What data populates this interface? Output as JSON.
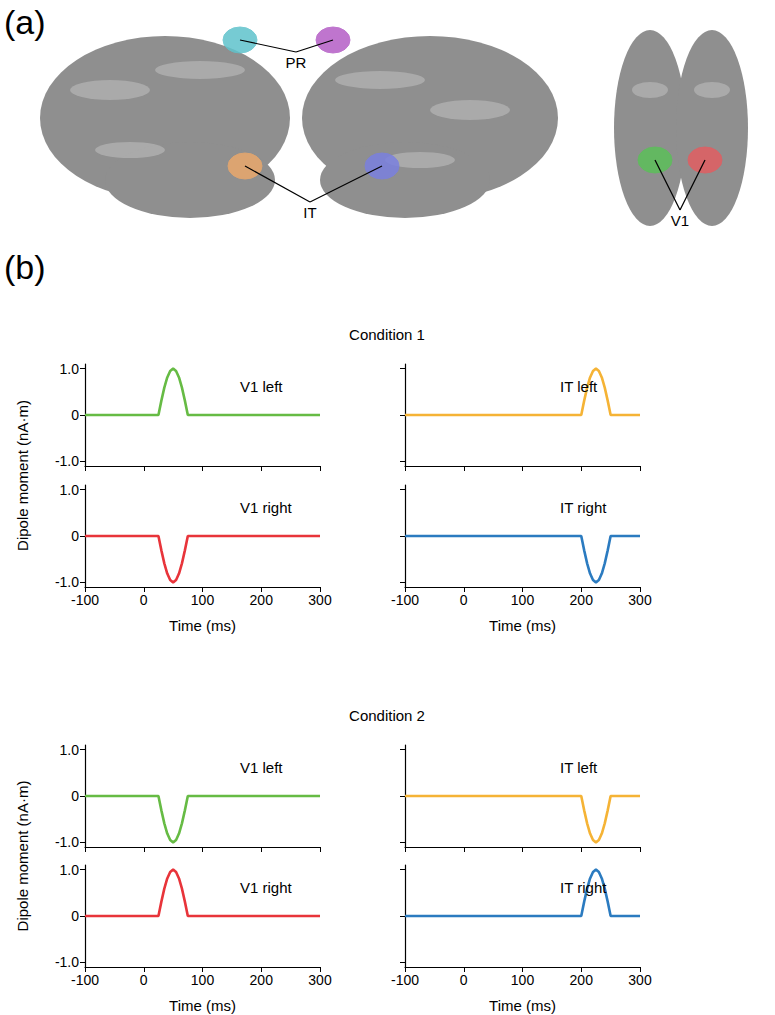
{
  "figure": {
    "panel_a": {
      "label": "(a)",
      "regions": [
        {
          "label": "PR",
          "colors": [
            "#5fc3cc",
            "#b45ec6"
          ]
        },
        {
          "label": "IT",
          "colors": [
            "#eaa86c",
            "#7a80e0"
          ]
        },
        {
          "label": "V1",
          "colors": [
            "#5cc05a",
            "#e25e62"
          ]
        }
      ]
    },
    "panel_b": {
      "label": "(b)",
      "conditions": [
        "Condition 1",
        "Condition 2"
      ],
      "ylabel": "Dipole moment (nA·m)",
      "xlabel": "Time (ms)"
    }
  },
  "chart_data": [
    {
      "type": "line",
      "condition": "Condition 1",
      "title": "V1 left",
      "color": "#66bb44",
      "x": [
        -100,
        25,
        30,
        35,
        40,
        45,
        50,
        55,
        60,
        65,
        70,
        75,
        300
      ],
      "values": [
        0,
        0,
        0.31,
        0.59,
        0.81,
        0.95,
        1.0,
        0.95,
        0.81,
        0.59,
        0.31,
        0,
        0
      ],
      "xlim": [
        -100,
        300
      ],
      "xticks": [
        -100,
        0,
        100,
        200,
        300
      ],
      "ylim": [
        -1.1,
        1.1
      ],
      "yticks": [
        {
          "value": -1,
          "label": "-1.0"
        },
        0,
        {
          "value": 1,
          "label": "1.0"
        }
      ],
      "tick_labels": "y"
    },
    {
      "type": "line",
      "condition": "Condition 1",
      "title": "IT left",
      "color": "#f5b335",
      "x": [
        -100,
        200,
        205,
        210,
        215,
        220,
        225,
        230,
        235,
        240,
        245,
        250,
        300
      ],
      "values": [
        0,
        0,
        0.31,
        0.59,
        0.81,
        0.95,
        1.0,
        0.95,
        0.81,
        0.59,
        0.31,
        0,
        0
      ],
      "xlim": [
        -100,
        300
      ],
      "xticks": [
        -100,
        0,
        100,
        200,
        300
      ],
      "ylim": [
        -1.1,
        1.1
      ],
      "yticks": [
        {
          "value": -1,
          "label": "-1.0"
        },
        0,
        {
          "value": 1,
          "label": "1.0"
        }
      ],
      "tick_labels": false
    },
    {
      "type": "line",
      "condition": "Condition 1",
      "title": "V1 right",
      "color": "#e8343a",
      "x": [
        -100,
        25,
        30,
        35,
        40,
        45,
        50,
        55,
        60,
        65,
        70,
        75,
        300
      ],
      "values": [
        0,
        0,
        -0.31,
        -0.59,
        -0.81,
        -0.95,
        -1.0,
        -0.95,
        -0.81,
        -0.59,
        -0.31,
        0,
        0
      ],
      "xlim": [
        -100,
        300
      ],
      "xticks": [
        -100,
        0,
        100,
        200,
        300
      ],
      "ylim": [
        -1.1,
        1.1
      ],
      "yticks": [
        {
          "value": -1,
          "label": "-1.0"
        },
        0,
        {
          "value": 1,
          "label": "1.0"
        }
      ],
      "tick_labels": true
    },
    {
      "type": "line",
      "condition": "Condition 1",
      "title": "IT right",
      "color": "#2b7bc0",
      "x": [
        -100,
        200,
        205,
        210,
        215,
        220,
        225,
        230,
        235,
        240,
        245,
        250,
        300
      ],
      "values": [
        0,
        0,
        -0.31,
        -0.59,
        -0.81,
        -0.95,
        -1.0,
        -0.95,
        -0.81,
        -0.59,
        -0.31,
        0,
        0
      ],
      "xlim": [
        -100,
        300
      ],
      "xticks": [
        -100,
        0,
        100,
        200,
        300
      ],
      "ylim": [
        -1.1,
        1.1
      ],
      "yticks": [
        {
          "value": -1,
          "label": "-1.0"
        },
        0,
        {
          "value": 1,
          "label": "1.0"
        }
      ],
      "tick_labels": "x"
    },
    {
      "type": "line",
      "condition": "Condition 2",
      "title": "V1 left",
      "color": "#66bb44",
      "x": [
        -100,
        25,
        30,
        35,
        40,
        45,
        50,
        55,
        60,
        65,
        70,
        75,
        300
      ],
      "values": [
        0,
        0,
        -0.31,
        -0.59,
        -0.81,
        -0.95,
        -1.0,
        -0.95,
        -0.81,
        -0.59,
        -0.31,
        0,
        0
      ],
      "xlim": [
        -100,
        300
      ],
      "xticks": [
        -100,
        0,
        100,
        200,
        300
      ],
      "ylim": [
        -1.1,
        1.1
      ],
      "yticks": [
        {
          "value": -1,
          "label": "-1.0"
        },
        0,
        {
          "value": 1,
          "label": "1.0"
        }
      ],
      "tick_labels": "y"
    },
    {
      "type": "line",
      "condition": "Condition 2",
      "title": "IT left",
      "color": "#f5b335",
      "x": [
        -100,
        200,
        205,
        210,
        215,
        220,
        225,
        230,
        235,
        240,
        245,
        250,
        300
      ],
      "values": [
        0,
        0,
        -0.31,
        -0.59,
        -0.81,
        -0.95,
        -1.0,
        -0.95,
        -0.81,
        -0.59,
        -0.31,
        0,
        0
      ],
      "xlim": [
        -100,
        300
      ],
      "xticks": [
        -100,
        0,
        100,
        200,
        300
      ],
      "ylim": [
        -1.1,
        1.1
      ],
      "yticks": [
        {
          "value": -1,
          "label": "-1.0"
        },
        0,
        {
          "value": 1,
          "label": "1.0"
        }
      ],
      "tick_labels": false
    },
    {
      "type": "line",
      "condition": "Condition 2",
      "title": "V1 right",
      "color": "#e8343a",
      "x": [
        -100,
        25,
        30,
        35,
        40,
        45,
        50,
        55,
        60,
        65,
        70,
        75,
        300
      ],
      "values": [
        0,
        0,
        0.31,
        0.59,
        0.81,
        0.95,
        1.0,
        0.95,
        0.81,
        0.59,
        0.31,
        0,
        0
      ],
      "xlim": [
        -100,
        300
      ],
      "xticks": [
        -100,
        0,
        100,
        200,
        300
      ],
      "ylim": [
        -1.1,
        1.1
      ],
      "yticks": [
        {
          "value": -1,
          "label": "-1.0"
        },
        0,
        {
          "value": 1,
          "label": "1.0"
        }
      ],
      "tick_labels": true
    },
    {
      "type": "line",
      "condition": "Condition 2",
      "title": "IT right",
      "color": "#2b7bc0",
      "x": [
        -100,
        200,
        205,
        210,
        215,
        220,
        225,
        230,
        235,
        240,
        245,
        250,
        300
      ],
      "values": [
        0,
        0,
        0.31,
        0.59,
        0.81,
        0.95,
        1.0,
        0.95,
        0.81,
        0.59,
        0.31,
        0,
        0
      ],
      "xlim": [
        -100,
        300
      ],
      "xticks": [
        -100,
        0,
        100,
        200,
        300
      ],
      "ylim": [
        -1.1,
        1.1
      ],
      "yticks": [
        {
          "value": -1,
          "label": "-1.0"
        },
        0,
        {
          "value": 1,
          "label": "1.0"
        }
      ],
      "tick_labels": "x"
    }
  ]
}
